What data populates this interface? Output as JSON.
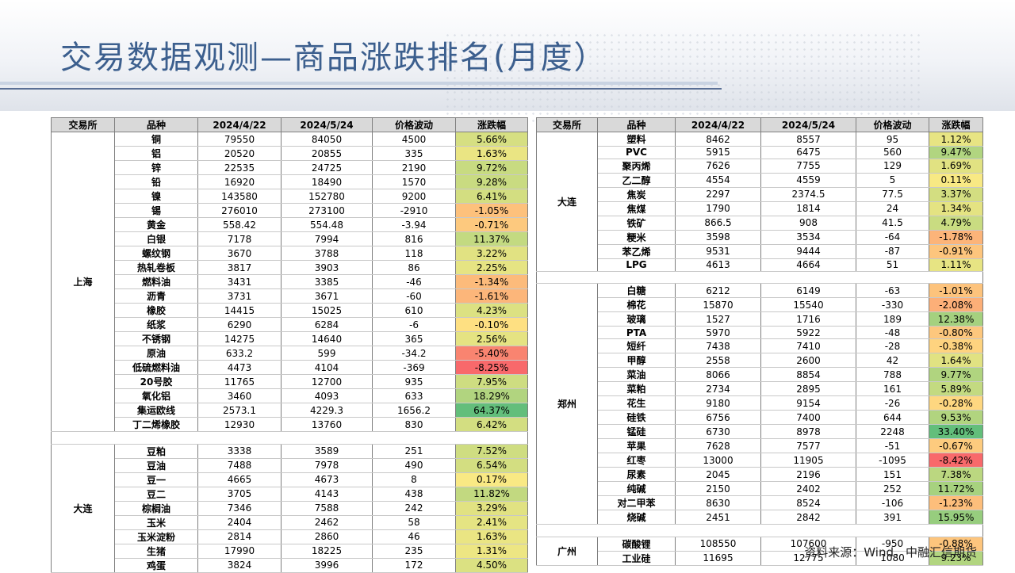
{
  "title": "交易数据观测—商品涨跌排名(月度）",
  "source": "资料来源：Wind，中融汇信期货",
  "headers": [
    "交易所",
    "品种",
    "2024/4/22",
    "2024/5/24",
    "价格波动",
    "涨跌幅"
  ],
  "left_table": [
    {
      "exchange": "上海",
      "rows": [
        [
          "铜",
          "79550",
          "84050",
          "4500",
          "5.66%"
        ],
        [
          "铝",
          "20520",
          "20855",
          "335",
          "1.63%"
        ],
        [
          "锌",
          "22535",
          "24725",
          "2190",
          "9.72%"
        ],
        [
          "铅",
          "16920",
          "18490",
          "1570",
          "9.28%"
        ],
        [
          "镍",
          "143580",
          "152780",
          "9200",
          "6.41%"
        ],
        [
          "锡",
          "276010",
          "273100",
          "-2910",
          "-1.05%"
        ],
        [
          "黄金",
          "558.42",
          "554.48",
          "-3.94",
          "-0.71%"
        ],
        [
          "白银",
          "7178",
          "7994",
          "816",
          "11.37%"
        ],
        [
          "螺纹钢",
          "3670",
          "3788",
          "118",
          "3.22%"
        ],
        [
          "热轧卷板",
          "3817",
          "3903",
          "86",
          "2.25%"
        ],
        [
          "燃料油",
          "3431",
          "3385",
          "-46",
          "-1.34%"
        ],
        [
          "沥青",
          "3731",
          "3671",
          "-60",
          "-1.61%"
        ],
        [
          "橡胶",
          "14415",
          "15025",
          "610",
          "4.23%"
        ],
        [
          "纸浆",
          "6290",
          "6284",
          "-6",
          "-0.10%"
        ],
        [
          "不锈钢",
          "14275",
          "14640",
          "365",
          "2.56%"
        ],
        [
          "原油",
          "633.2",
          "599",
          "-34.2",
          "-5.40%"
        ],
        [
          "低硫燃料油",
          "4473",
          "4104",
          "-369",
          "-8.25%"
        ],
        [
          "20号胶",
          "11765",
          "12700",
          "935",
          "7.95%"
        ],
        [
          "氧化铝",
          "3460",
          "4093",
          "633",
          "18.29%"
        ],
        [
          "集运欧线",
          "2573.1",
          "4229.3",
          "1656.2",
          "64.37%"
        ],
        [
          "丁二烯橡胶",
          "12930",
          "13760",
          "830",
          "6.42%"
        ]
      ]
    },
    {
      "exchange": "大连",
      "rows": [
        [
          "豆粕",
          "3338",
          "3589",
          "251",
          "7.52%"
        ],
        [
          "豆油",
          "7488",
          "7978",
          "490",
          "6.54%"
        ],
        [
          "豆一",
          "4665",
          "4673",
          "8",
          "0.17%"
        ],
        [
          "豆二",
          "3705",
          "4143",
          "438",
          "11.82%"
        ],
        [
          "棕榈油",
          "7346",
          "7588",
          "242",
          "3.29%"
        ],
        [
          "玉米",
          "2404",
          "2462",
          "58",
          "2.41%"
        ],
        [
          "玉米淀粉",
          "2814",
          "2860",
          "46",
          "1.63%"
        ],
        [
          "生猪",
          "17990",
          "18225",
          "235",
          "1.31%"
        ],
        [
          "鸡蛋",
          "3824",
          "3996",
          "172",
          "4.50%"
        ]
      ]
    }
  ],
  "right_table": [
    {
      "exchange": "大连",
      "rows": [
        [
          "塑料",
          "8462",
          "8557",
          "95",
          "1.12%"
        ],
        [
          "PVC",
          "5915",
          "6475",
          "560",
          "9.47%"
        ],
        [
          "聚丙烯",
          "7626",
          "7755",
          "129",
          "1.69%"
        ],
        [
          "乙二醇",
          "4554",
          "4559",
          "5",
          "0.11%"
        ],
        [
          "焦炭",
          "2297",
          "2374.5",
          "77.5",
          "3.37%"
        ],
        [
          "焦煤",
          "1790",
          "1814",
          "24",
          "1.34%"
        ],
        [
          "铁矿",
          "866.5",
          "908",
          "41.5",
          "4.79%"
        ],
        [
          "粳米",
          "3598",
          "3534",
          "-64",
          "-1.78%"
        ],
        [
          "苯乙烯",
          "9531",
          "9444",
          "-87",
          "-0.91%"
        ],
        [
          "LPG",
          "4613",
          "4664",
          "51",
          "1.11%"
        ]
      ]
    },
    {
      "exchange": "郑州",
      "rows": [
        [
          "白糖",
          "6212",
          "6149",
          "-63",
          "-1.01%"
        ],
        [
          "棉花",
          "15870",
          "15540",
          "-330",
          "-2.08%"
        ],
        [
          "玻璃",
          "1527",
          "1716",
          "189",
          "12.38%"
        ],
        [
          "PTA",
          "5970",
          "5922",
          "-48",
          "-0.80%"
        ],
        [
          "短纤",
          "7438",
          "7410",
          "-28",
          "-0.38%"
        ],
        [
          "甲醇",
          "2558",
          "2600",
          "42",
          "1.64%"
        ],
        [
          "菜油",
          "8066",
          "8854",
          "788",
          "9.77%"
        ],
        [
          "菜粕",
          "2734",
          "2895",
          "161",
          "5.89%"
        ],
        [
          "花生",
          "9180",
          "9154",
          "-26",
          "-0.28%"
        ],
        [
          "硅铁",
          "6756",
          "7400",
          "644",
          "9.53%"
        ],
        [
          "锰硅",
          "6730",
          "8978",
          "2248",
          "33.40%"
        ],
        [
          "苹果",
          "7628",
          "7577",
          "-51",
          "-0.67%"
        ],
        [
          "红枣",
          "13000",
          "11905",
          "-1095",
          "-8.42%"
        ],
        [
          "尿素",
          "2045",
          "2196",
          "151",
          "7.38%"
        ],
        [
          "纯碱",
          "2150",
          "2402",
          "252",
          "11.72%"
        ],
        [
          "对二甲苯",
          "8630",
          "8524",
          "-106",
          "-1.23%"
        ],
        [
          "烧碱",
          "2451",
          "2842",
          "391",
          "15.95%"
        ]
      ]
    },
    {
      "exchange": "广州",
      "rows": [
        [
          "碳酸锂",
          "108550",
          "107600",
          "-950",
          "-0.88%"
        ],
        [
          "工业硅",
          "11695",
          "12775",
          "1080",
          "9.23%"
        ]
      ]
    }
  ]
}
